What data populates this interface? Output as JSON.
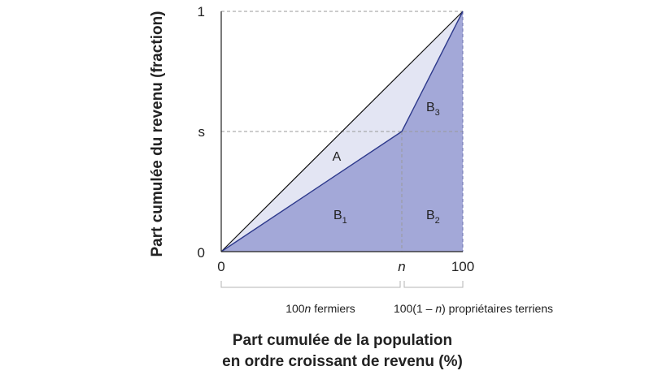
{
  "axes": {
    "y_title": "Part cumulée du revenu (fraction)",
    "x_title_line1": "Part cumulée de la population",
    "x_title_line2": "en ordre croissant de revenu (%)",
    "y_ticks": {
      "top": "1",
      "mid": "s",
      "bottom": "0"
    },
    "x_ticks": {
      "left": "0",
      "mid": "n",
      "right": "100"
    }
  },
  "regions": {
    "a": "A",
    "b1_base": "B",
    "b1_sub": "1",
    "b2_base": "B",
    "b2_sub": "2",
    "b3_base": "B",
    "b3_sub": "3"
  },
  "groups": {
    "farmers_prefix": "100",
    "farmers_var": "n",
    "farmers_suffix": " fermiers",
    "landowners_prefix": "100(1 – ",
    "landowners_var": "n",
    "landowners_suffix": ") propriétaires terriens"
  },
  "colors": {
    "lorenz_fill": "#a3a8d8",
    "gap_fill": "#e3e5f3",
    "lorenz_line": "#2e3a8c",
    "equality_line": "#111111",
    "guide_line": "#9a9a9a"
  }
}
